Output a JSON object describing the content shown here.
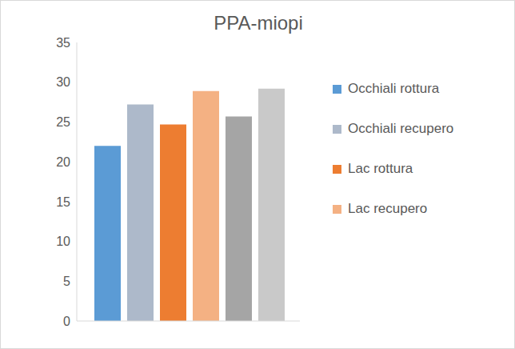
{
  "chart_data": {
    "type": "bar",
    "title": "PPA-miopi",
    "categories": [
      null
    ],
    "series": [
      {
        "name": "Occhiali rottura",
        "color": "#5b9bd5",
        "values": [
          22
        ]
      },
      {
        "name": "Occhiali recupero",
        "color": "#adb9ca",
        "values": [
          27.2
        ]
      },
      {
        "name": "Lac rottura",
        "color": "#ed7d31",
        "values": [
          24.7
        ]
      },
      {
        "name": "Lac recupero",
        "color": "#f4b183",
        "values": [
          28.9
        ]
      },
      {
        "name": null,
        "color": "#a5a5a5",
        "values": [
          25.7
        ]
      },
      {
        "name": null,
        "color": "#c9c9c9",
        "values": [
          29.2
        ]
      }
    ],
    "ylim": [
      0,
      35
    ],
    "yticks": [
      0,
      5,
      10,
      15,
      20,
      25,
      30,
      35
    ],
    "grid": false,
    "legend": "right"
  }
}
